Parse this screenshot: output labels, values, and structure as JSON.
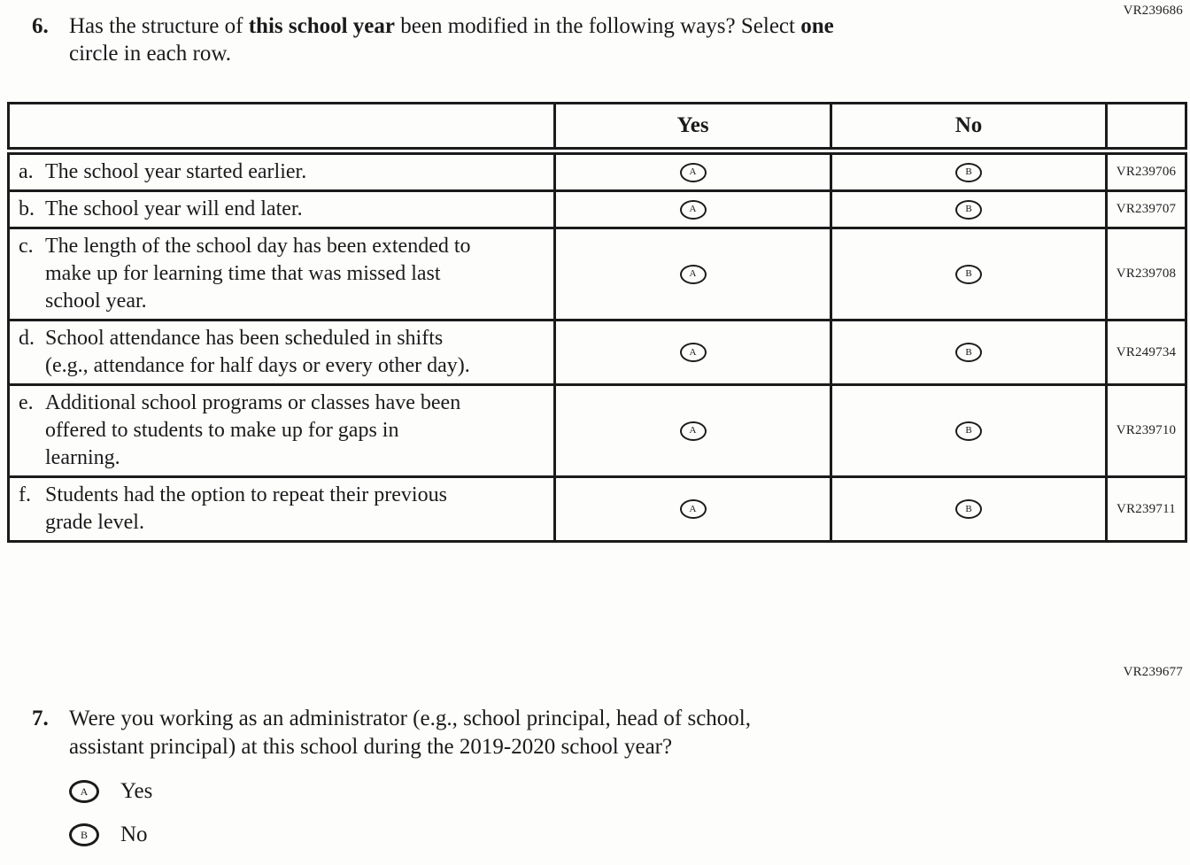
{
  "page": {
    "q6_form_code": "VR239686",
    "q7_form_code": "VR239677"
  },
  "q6": {
    "number": "6.",
    "lines": [
      {
        "segments": [
          {
            "text": "Has the structure of ",
            "bold": false
          },
          {
            "text": "this school year",
            "bold": true
          },
          {
            "text": " been modified in the following ways? Select ",
            "bold": false
          },
          {
            "text": "one",
            "bold": true
          }
        ]
      },
      {
        "segments": [
          {
            "text": "circle in each row.",
            "bold": false
          }
        ]
      }
    ]
  },
  "table": {
    "headers": {
      "statement": "",
      "yes": "Yes",
      "no": "No",
      "code": ""
    },
    "option_letters": {
      "yes": "A",
      "no": "B"
    },
    "rows": [
      {
        "letter": "a.",
        "text": "The school year started earlier.",
        "code": "VR239706"
      },
      {
        "letter": "b.",
        "text": "The school year will end later.",
        "code": "VR239707"
      },
      {
        "letter": "c.",
        "text": "The length of the school day has been extended to make up for learning time that was missed last school year.",
        "code": "VR239708"
      },
      {
        "letter": "d.",
        "text": "School attendance has been scheduled in shifts (e.g., attendance for half days or every other day).",
        "code": "VR249734"
      },
      {
        "letter": "e.",
        "text": "Additional school programs or classes have been offered to students to make up for gaps in learning.",
        "code": "VR239710"
      },
      {
        "letter": "f.",
        "text": "Students had the option to repeat their previous grade level.",
        "code": "VR239711"
      }
    ]
  },
  "q7": {
    "number": "7.",
    "lines": [
      "Were you working as an administrator (e.g., school principal, head of school,",
      "assistant principal) at this school during the 2019-2020 school year?"
    ],
    "options": [
      {
        "letter": "A",
        "label": "Yes"
      },
      {
        "letter": "B",
        "label": "No"
      }
    ]
  }
}
